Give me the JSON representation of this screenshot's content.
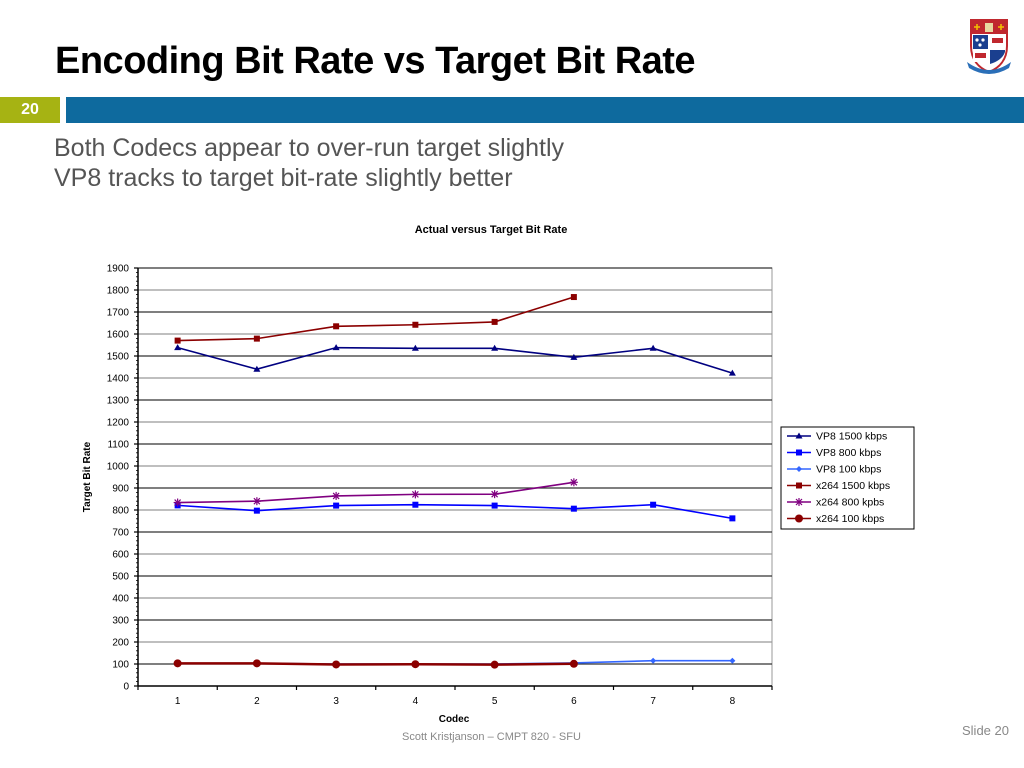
{
  "slide": {
    "title": "Encoding Bit Rate vs Target Bit Rate",
    "slide_number": "20",
    "bullets": [
      "Both Codecs appear to over-run target slightly",
      "VP8 tracks to target bit-rate slightly better"
    ],
    "footer": "Scott Kristjanson – CMPT 820 - SFU",
    "slide_label": "Slide 20",
    "logo": "university-crest-icon",
    "colors": {
      "title": "#000000",
      "slide_number_box": "#a6b313",
      "header_bar": "#0e6a9e",
      "bullet_text": "#555555"
    }
  },
  "chart_data": {
    "type": "line",
    "title": "Actual versus Target Bit Rate",
    "xlabel": "Codec",
    "ylabel": "Target Bit Rate",
    "categories": [
      "1",
      "2",
      "3",
      "4",
      "5",
      "6",
      "7",
      "8"
    ],
    "ylim": [
      0,
      1900
    ],
    "yticks": [
      0,
      100,
      200,
      300,
      400,
      500,
      600,
      700,
      800,
      900,
      1000,
      1100,
      1200,
      1300,
      1400,
      1500,
      1600,
      1700,
      1800,
      1900
    ],
    "grid": true,
    "legend_position": "right",
    "series": [
      {
        "name": "VP8 1500 kbps",
        "color": "#000080",
        "marker": "triangle",
        "values": [
          1538,
          1440,
          1538,
          1535,
          1535,
          1494,
          1535,
          1422
        ]
      },
      {
        "name": "VP8 800 kbps",
        "color": "#0000ff",
        "marker": "square",
        "values": [
          821,
          797,
          820,
          824,
          820,
          806,
          824,
          762
        ]
      },
      {
        "name": "VP8 100 kbps",
        "color": "#3366ff",
        "marker": "diamond",
        "values": [
          103,
          103,
          100,
          100,
          100,
          105,
          115,
          115
        ]
      },
      {
        "name": "x264 1500 kbps",
        "color": "#8b0000",
        "marker": "square",
        "values": [
          1570,
          1579,
          1635,
          1642,
          1655,
          1768,
          null,
          null
        ]
      },
      {
        "name": "x264 800 kpbs",
        "color": "#800080",
        "marker": "star",
        "values": [
          834,
          840,
          864,
          871,
          872,
          926,
          null,
          null
        ]
      },
      {
        "name": "x264 100 kbps",
        "color": "#8b0000",
        "marker": "circle",
        "values": [
          103,
          103,
          98,
          99,
          97,
          101,
          null,
          null
        ]
      }
    ]
  }
}
